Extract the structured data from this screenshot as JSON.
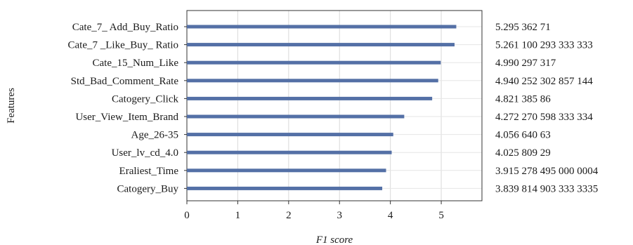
{
  "chart_data": {
    "type": "bar",
    "orientation": "horizontal",
    "xlabel": "F1 score",
    "ylabel": "Features",
    "xlim": [
      0,
      5.8
    ],
    "xticks": [
      0,
      1,
      2,
      3,
      4,
      5
    ],
    "grid": true,
    "bar_color": "#5470a6",
    "categories": [
      "Cate_7_ Add_Buy_Ratio",
      "Cate_7 _Like_Buy_ Ratio",
      "Cate_15_Num_Like",
      "Std_Bad_Comment_Rate",
      "Catogery_Click",
      "User_View_Item_Brand",
      "Age_26-35",
      "User_lv_cd_4.0",
      "Eraliest_Time",
      "Catogery_Buy"
    ],
    "values": [
      5.29536271,
      5.261100293333333,
      4.990297317,
      4.940252302857144,
      4.82138586,
      4.272270598333334,
      4.05664063,
      4.02580929,
      3.9152784950000004,
      3.8398149033333335
    ],
    "value_labels": [
      "5.295 362 71",
      "5.261 100 293 333 333",
      "4.990 297 317",
      "4.940 252 302 857 144",
      "4.821 385 86",
      "4.272 270 598 333 334",
      "4.056 640 63",
      "4.025 809 29",
      "3.915 278 495 000 0004",
      "3.839 814 903 333 3335"
    ]
  }
}
